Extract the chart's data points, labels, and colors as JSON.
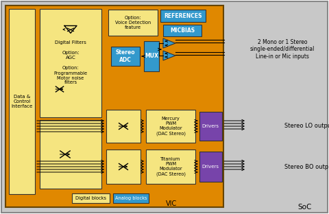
{
  "bg_outer": "#c8c8c8",
  "bg_orange": "#e08800",
  "bg_yellow": "#f5e580",
  "bg_blue": "#3399cc",
  "bg_purple": "#7744aa",
  "text_dark": "#000000",
  "text_white": "#ffffff",
  "blocks": {
    "soc_label": "SoC",
    "vic_label": "VIC",
    "data_ctrl": "Data &\nControl\nInterface",
    "digital_filters": "Digital Filters",
    "agc": "Option:\nAGC",
    "voice_det": "Option:\nVoice Detection\nfeature",
    "motor_noise": "Option:\nProgrammable\nMotor noise\nfilters",
    "stereo_adc": "Stereo\nADC",
    "mux": "MUX",
    "references": "REFERENCES",
    "micbias": "MICBIAS",
    "mercury": "Mercury\nPWM\nModulator\n(DAC Stereo)",
    "titanium": "Titanium\nPWM\nModulator\n(DAC Stereo)",
    "drivers1": "Drivers",
    "drivers2": "Drivers",
    "digital_blocks": "Digital blocks",
    "analog_blocks": "Analog blocks",
    "stereo_lo": "Stereo LO output",
    "stereo_bo": "Stereo BO output",
    "inputs_label": "2 Mono or 1 Stereo\nsingle-ended/differential\nLine-in or Mic inputs"
  }
}
